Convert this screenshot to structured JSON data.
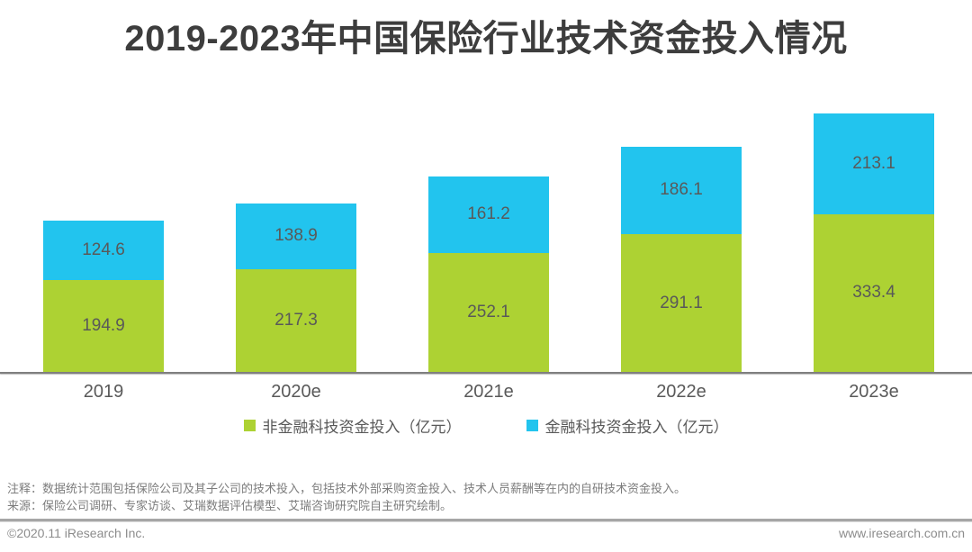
{
  "title": "2019-2023年中国保险行业技术资金投入情况",
  "chart_data": {
    "type": "bar",
    "stacked": true,
    "title": "2019-2023年中国保险行业技术资金投入情况",
    "categories": [
      "2019",
      "2020e",
      "2021e",
      "2022e",
      "2023e"
    ],
    "series": [
      {
        "name": "非金融科技资金投入（亿元）",
        "color": "#add233",
        "values": [
          194.9,
          217.3,
          252.1,
          291.1,
          333.4
        ]
      },
      {
        "name": "金融科技资金投入（亿元）",
        "color": "#22c4ee",
        "values": [
          124.6,
          138.9,
          161.2,
          186.1,
          213.1
        ]
      }
    ],
    "unit": "亿元",
    "value_labels": "inside",
    "legend_position": "bottom",
    "grid": false,
    "y_axis_visible": false
  },
  "notes": {
    "line1": "注释：数据统计范围包括保险公司及其子公司的技术投入，包括技术外部采购资金投入、技术人员薪酬等在内的自研技术资金投入。",
    "line2": "来源：保险公司调研、专家访谈、艾瑞数据评估模型、艾瑞咨询研究院自主研究绘制。"
  },
  "footer": {
    "copyright": "©2020.11 iResearch Inc.",
    "website": "www.iresearch.com.cn"
  },
  "colors": {
    "non_fintech_green": "#add233",
    "fintech_blue": "#22c4ee",
    "title_text": "#3d3d3d",
    "value_text": "#595959",
    "note_text": "#7c7c7c",
    "axis_line": "#7f7f7f",
    "divider": "#a6a6a6",
    "footer_text": "#8c8c8c"
  }
}
